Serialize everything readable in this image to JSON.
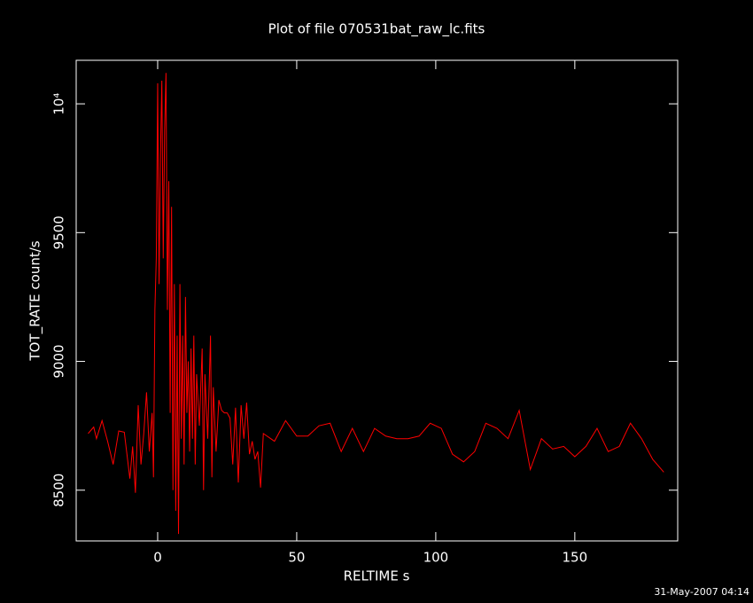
{
  "chart_data": {
    "type": "line",
    "title": "Plot of file 070531bat_raw_lc.fits",
    "x_label": "RELTIME  s",
    "y_label": "TOT_RATE  count/s",
    "timestamp": "31-May-2007 04:14",
    "xlim": [
      -29.3,
      187
    ],
    "ylim": [
      8303,
      10169
    ],
    "xticks": [
      0,
      50,
      100,
      150
    ],
    "yticks": [
      8500,
      9000,
      9500,
      {
        "value": 10000,
        "label": "10⁴"
      }
    ],
    "x": [
      -25,
      -23,
      -22,
      -20,
      -18,
      -16,
      -14,
      -12,
      -10,
      -9,
      -8,
      -7,
      -6,
      -5,
      -4,
      -3,
      -2,
      -1.5,
      -1,
      -0.5,
      0,
      0.5,
      1,
      1.5,
      2,
      2.5,
      3,
      3.5,
      4,
      4.5,
      5,
      5.5,
      6,
      6.5,
      7,
      7.5,
      8,
      8.5,
      9,
      9.5,
      10,
      10.5,
      11,
      11.5,
      12,
      12.5,
      13,
      13.5,
      14,
      15,
      16,
      16.5,
      17,
      18,
      19,
      19.5,
      20,
      21,
      22,
      23,
      24,
      25,
      26,
      27,
      28,
      29,
      30,
      31,
      32,
      33,
      34,
      35,
      36,
      37,
      38,
      42,
      46,
      50,
      54,
      58,
      62,
      66,
      70,
      74,
      78,
      82,
      86,
      90,
      94,
      98,
      102,
      106,
      110,
      114,
      118,
      122,
      126,
      130,
      134,
      138,
      142,
      146,
      150,
      154,
      158,
      162,
      166,
      170,
      174,
      178,
      182
    ],
    "series": [
      {
        "name": "TOT_RATE",
        "color": "#ff0000",
        "values": [
          8720,
          8745,
          8700,
          8770,
          8690,
          8600,
          8730,
          8725,
          8545,
          8670,
          8490,
          8830,
          8600,
          8720,
          8880,
          8650,
          8800,
          8550,
          9200,
          9400,
          10080,
          9300,
          9800,
          10090,
          9400,
          9900,
          10120,
          9200,
          9700,
          8800,
          9600,
          8500,
          9300,
          8420,
          9100,
          8330,
          9300,
          8700,
          9100,
          8600,
          9250,
          8800,
          9000,
          8650,
          9050,
          8700,
          9100,
          8600,
          8950,
          8750,
          9050,
          8500,
          8950,
          8700,
          9100,
          8550,
          8900,
          8650,
          8850,
          8810,
          8800,
          8800,
          8780,
          8600,
          8820,
          8530,
          8830,
          8700,
          8840,
          8640,
          8690,
          8620,
          8650,
          8510,
          8720,
          8690,
          8770,
          8710,
          8710,
          8750,
          8760,
          8650,
          8740,
          8650,
          8740,
          8710,
          8700,
          8700,
          8710,
          8760,
          8740,
          8640,
          8610,
          8650,
          8760,
          8740,
          8700,
          8810,
          8580,
          8700,
          8660,
          8670,
          8630,
          8670,
          8740,
          8650,
          8670,
          8760,
          8700,
          8620,
          8570
        ]
      }
    ]
  }
}
